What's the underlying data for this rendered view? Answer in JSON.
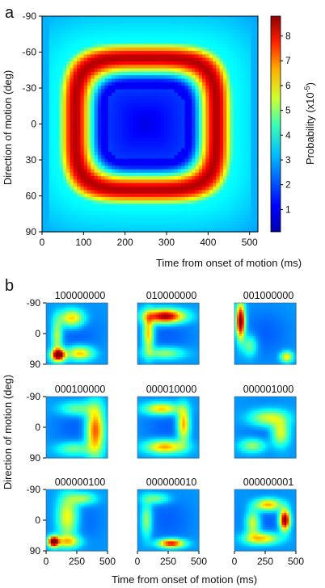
{
  "panels": {
    "a": "a",
    "b": "b"
  },
  "chart_data": [
    {
      "type": "heatmap",
      "panel": "a",
      "xlabel": "Time from onset of motion (ms)",
      "ylabel": "Direction of motion (deg)",
      "x_ticks": [
        "0",
        "100",
        "200",
        "300",
        "400",
        "500"
      ],
      "y_ticks": [
        "-90",
        "-60",
        "-30",
        "0",
        "30",
        "60",
        "90"
      ],
      "xlim": [
        0,
        520
      ],
      "ylim": [
        -90,
        90
      ],
      "colorbar": {
        "label": "Probability (x10",
        "label_exp": "-5",
        "label_end": ")",
        "ticks": [
          "1",
          "2",
          "3",
          "4",
          "5",
          "6",
          "7",
          "8"
        ],
        "range": [
          0.1,
          8.8
        ]
      },
      "description_values": {
        "ring_time_range_ms": [
          80,
          420
        ],
        "ring_direction_range_deg": [
          -55,
          55
        ],
        "peak": 8.5,
        "center_value": 0.6
      }
    },
    {
      "type": "heatmap",
      "panel": "b",
      "xlabel": "Time from onset of motion (ms)",
      "ylabel": "Direction of motion (deg)",
      "x_ticks": [
        "0",
        "250",
        "500"
      ],
      "y_ticks": [
        "-90",
        "0",
        "90"
      ],
      "xlim": [
        0,
        500
      ],
      "ylim": [
        -90,
        90
      ],
      "subplots": [
        {
          "code": "100000000"
        },
        {
          "code": "010000000"
        },
        {
          "code": "001000000"
        },
        {
          "code": "000100000"
        },
        {
          "code": "000010000"
        },
        {
          "code": "000001000"
        },
        {
          "code": "000000100"
        },
        {
          "code": "000000010"
        },
        {
          "code": "000000001"
        }
      ]
    }
  ],
  "colors": {
    "colormap": [
      "#00008f",
      "#0000ff",
      "#0080ff",
      "#00ffff",
      "#80ff80",
      "#ffff00",
      "#ff8000",
      "#ff0000",
      "#800000"
    ]
  }
}
